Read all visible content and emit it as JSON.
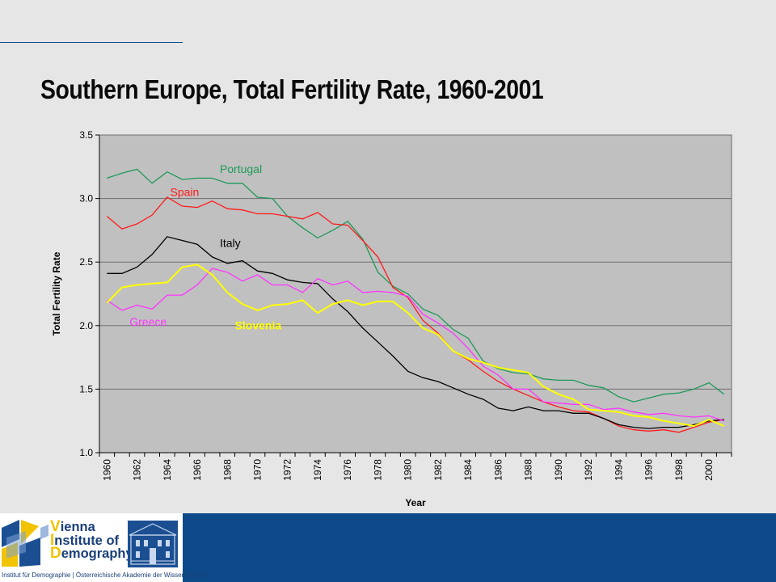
{
  "title": "Southern Europe, Total Fertility Rate, 1960-2001",
  "chart_data": {
    "type": "line",
    "title": "Southern Europe, Total Fertility Rate, 1960-2001",
    "xlabel": "Year",
    "ylabel": "Total Fertility Rate",
    "xlim": [
      1960,
      2001
    ],
    "ylim": [
      1.0,
      3.5
    ],
    "yticks": [
      1.0,
      1.5,
      2.0,
      2.5,
      3.0,
      3.5
    ],
    "ytick_labels": [
      "1.0",
      "1.5",
      "2.0",
      "2.5",
      "3.0",
      "3.5"
    ],
    "xtick_labels": [
      "1960",
      "1962",
      "1964",
      "1966",
      "1968",
      "1970",
      "1972",
      "1974",
      "1976",
      "1978",
      "1980",
      "1982",
      "1984",
      "1986",
      "1988",
      "1990",
      "1992",
      "1994",
      "1996",
      "1998",
      "2000"
    ],
    "grid": true,
    "legend": "inline labels",
    "x": [
      1960,
      1961,
      1962,
      1963,
      1964,
      1965,
      1966,
      1967,
      1968,
      1969,
      1970,
      1971,
      1972,
      1973,
      1974,
      1975,
      1976,
      1977,
      1978,
      1979,
      1980,
      1981,
      1982,
      1983,
      1984,
      1985,
      1986,
      1987,
      1988,
      1989,
      1990,
      1991,
      1992,
      1993,
      1994,
      1995,
      1996,
      1997,
      1998,
      1999,
      2000,
      2001
    ],
    "series": [
      {
        "name": "Portugal",
        "color": "#1f9a5a",
        "values": [
          3.16,
          3.2,
          3.23,
          3.12,
          3.21,
          3.15,
          3.16,
          3.16,
          3.12,
          3.12,
          3.01,
          3.0,
          2.86,
          2.77,
          2.69,
          2.75,
          2.82,
          2.68,
          2.42,
          2.31,
          2.25,
          2.13,
          2.08,
          1.97,
          1.9,
          1.72,
          1.66,
          1.63,
          1.62,
          1.58,
          1.57,
          1.57,
          1.53,
          1.51,
          1.44,
          1.4,
          1.43,
          1.46,
          1.47,
          1.5,
          1.55,
          1.46
        ]
      },
      {
        "name": "Spain",
        "color": "#ff1a1a",
        "values": [
          2.86,
          2.76,
          2.8,
          2.87,
          3.01,
          2.94,
          2.93,
          2.98,
          2.92,
          2.91,
          2.88,
          2.88,
          2.86,
          2.84,
          2.89,
          2.8,
          2.79,
          2.67,
          2.54,
          2.3,
          2.22,
          2.04,
          1.94,
          1.8,
          1.73,
          1.64,
          1.56,
          1.5,
          1.45,
          1.4,
          1.36,
          1.33,
          1.32,
          1.27,
          1.21,
          1.18,
          1.17,
          1.18,
          1.16,
          1.2,
          1.24,
          1.26
        ]
      },
      {
        "name": "Italy",
        "color": "#000000",
        "values": [
          2.41,
          2.41,
          2.46,
          2.56,
          2.7,
          2.67,
          2.64,
          2.54,
          2.49,
          2.51,
          2.43,
          2.41,
          2.36,
          2.34,
          2.33,
          2.21,
          2.11,
          1.98,
          1.87,
          1.76,
          1.64,
          1.59,
          1.56,
          1.51,
          1.46,
          1.42,
          1.35,
          1.33,
          1.36,
          1.33,
          1.33,
          1.31,
          1.31,
          1.27,
          1.22,
          1.2,
          1.19,
          1.2,
          1.2,
          1.22,
          1.25,
          1.26
        ]
      },
      {
        "name": "Greece",
        "color": "#ff33ff",
        "values": [
          2.2,
          2.12,
          2.16,
          2.13,
          2.24,
          2.24,
          2.32,
          2.45,
          2.42,
          2.35,
          2.4,
          2.32,
          2.32,
          2.26,
          2.37,
          2.32,
          2.35,
          2.26,
          2.27,
          2.26,
          2.23,
          2.09,
          2.02,
          1.94,
          1.82,
          1.68,
          1.61,
          1.5,
          1.5,
          1.4,
          1.39,
          1.38,
          1.38,
          1.34,
          1.35,
          1.32,
          1.3,
          1.31,
          1.29,
          1.28,
          1.29,
          1.25
        ]
      },
      {
        "name": "Slovenia",
        "color": "#ffff00",
        "values": [
          2.18,
          2.3,
          2.32,
          2.33,
          2.34,
          2.46,
          2.48,
          2.4,
          2.26,
          2.17,
          2.12,
          2.16,
          2.17,
          2.2,
          2.1,
          2.17,
          2.2,
          2.16,
          2.19,
          2.19,
          2.1,
          1.98,
          1.93,
          1.8,
          1.74,
          1.71,
          1.67,
          1.65,
          1.63,
          1.52,
          1.46,
          1.42,
          1.34,
          1.33,
          1.32,
          1.29,
          1.28,
          1.25,
          1.23,
          1.21,
          1.26,
          1.21
        ]
      }
    ]
  },
  "footer": {
    "logo_initials": [
      "V",
      "I",
      "D"
    ],
    "logo_words": [
      "ienna",
      "nstitute of",
      "emography"
    ],
    "caption": "Institut für Demographie | Österreichische Akademie der Wissenschaften"
  }
}
